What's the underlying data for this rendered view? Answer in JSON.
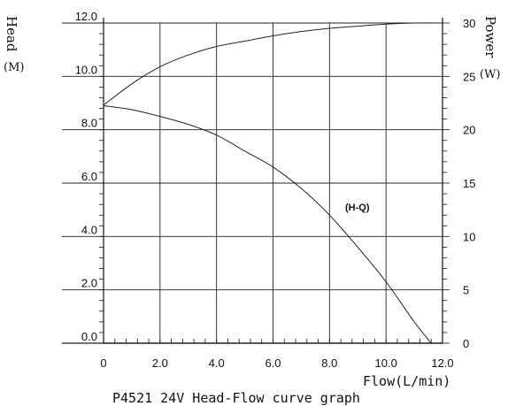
{
  "chart_data": {
    "type": "line",
    "title": "P4521 24V Head-Flow curve graph",
    "xlabel": "Flow(L/min)",
    "ylabel_left": {
      "name": "Head",
      "unit": "(M)"
    },
    "ylabel_right": {
      "name": "Power",
      "unit": "(W)"
    },
    "xlim": [
      0,
      12
    ],
    "ylim_left": [
      0,
      12
    ],
    "ylim_right": [
      0,
      30
    ],
    "x_ticks": [
      "0",
      "2.0",
      "4.0",
      "6.0",
      "8.0",
      "10.0",
      "12.0"
    ],
    "y_left_ticks": [
      "0.0",
      "2.0",
      "4.0",
      "6.0",
      "8.0",
      "10.0",
      "12.0"
    ],
    "y_right_ticks": [
      "0",
      "5",
      "10",
      "15",
      "20",
      "25",
      "30"
    ],
    "grid": true,
    "series": [
      {
        "name": "(H-Q)",
        "axis": "left",
        "x": [
          0,
          1,
          2,
          3,
          4,
          5,
          6,
          7,
          8,
          9,
          10,
          11,
          11.6
        ],
        "y": [
          8.9,
          8.75,
          8.5,
          8.2,
          7.8,
          7.2,
          6.6,
          5.8,
          4.8,
          3.6,
          2.3,
          0.8,
          0
        ]
      },
      {
        "name": "",
        "axis": "right",
        "x": [
          0,
          1,
          2,
          3,
          4,
          5,
          6,
          7,
          8,
          9,
          10,
          11,
          12
        ],
        "y": [
          22.3,
          24.3,
          25.9,
          27.0,
          27.8,
          28.3,
          28.8,
          29.2,
          29.5,
          29.7,
          29.9,
          30.0,
          30.0
        ]
      }
    ]
  }
}
